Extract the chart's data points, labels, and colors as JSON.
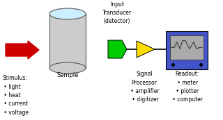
{
  "bg_color": "#ffffff",
  "arrow_color": "#cc0000",
  "cylinder_body_color": "#cccccc",
  "cylinder_top_color": "#cceeff",
  "green_box_color": "#00cc00",
  "yellow_triangle_color": "#ffdd00",
  "blue_box_color": "#4455cc",
  "screen_color": "#aaaaaa",
  "screen_line_color": "#444444",
  "connector_color": "#000000",
  "text_color": "#000000",
  "stimulus_text": "Stimulus:\n • light\n • heat\n • current\n • voltage",
  "sample_text": "Sample",
  "transducer_text": "Input\nTransducer\n(detector)",
  "signal_text": "Signal\nProcessor\n • amplifier\n • digitizer",
  "readout_text": "Readout:\n • meter\n • plotter\n • computer"
}
